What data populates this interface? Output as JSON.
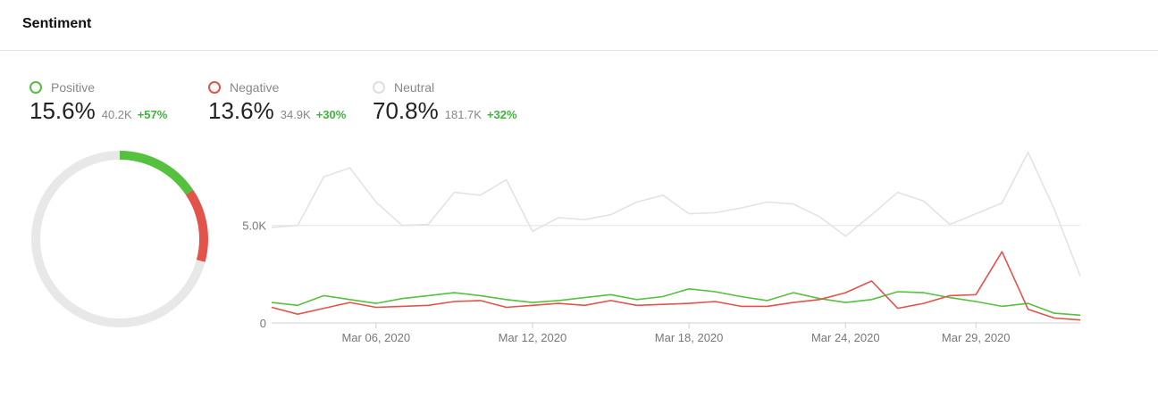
{
  "header": {
    "title": "Sentiment"
  },
  "colors": {
    "positive": "#55c13f",
    "negative": "#e2534b",
    "neutral": "#e3e3e3",
    "change": "#3db53d"
  },
  "legend": [
    {
      "key": "positive",
      "name": "Positive",
      "percent": "15.6%",
      "count": "40.2K",
      "change": "+57%"
    },
    {
      "key": "negative",
      "name": "Negative",
      "percent": "13.6%",
      "count": "34.9K",
      "change": "+30%"
    },
    {
      "key": "neutral",
      "name": "Neutral",
      "percent": "70.8%",
      "count": "181.7K",
      "change": "+32%"
    }
  ],
  "chart_data": [
    {
      "type": "pie",
      "variant": "donut",
      "categories": [
        "Positive",
        "Negative",
        "Neutral"
      ],
      "values": [
        15.6,
        13.6,
        70.8
      ]
    },
    {
      "type": "line",
      "x": [
        "2020-03-02",
        "2020-03-03",
        "2020-03-04",
        "2020-03-05",
        "2020-03-06",
        "2020-03-07",
        "2020-03-08",
        "2020-03-09",
        "2020-03-10",
        "2020-03-11",
        "2020-03-12",
        "2020-03-13",
        "2020-03-14",
        "2020-03-15",
        "2020-03-16",
        "2020-03-17",
        "2020-03-18",
        "2020-03-19",
        "2020-03-20",
        "2020-03-21",
        "2020-03-22",
        "2020-03-23",
        "2020-03-24",
        "2020-03-25",
        "2020-03-26",
        "2020-03-27",
        "2020-03-28",
        "2020-03-29",
        "2020-03-30",
        "2020-03-31",
        "2020-04-01",
        "2020-04-02"
      ],
      "xticks": [
        "Mar 06, 2020",
        "Mar 12, 2020",
        "Mar 18, 2020",
        "Mar 24, 2020",
        "Mar 29, 2020"
      ],
      "xtick_dates": [
        "2020-03-06",
        "2020-03-12",
        "2020-03-18",
        "2020-03-24",
        "2020-03-29"
      ],
      "yticks": [
        "0",
        "5.0K"
      ],
      "ytick_values": [
        0,
        5000
      ],
      "ylim": [
        0,
        9700
      ],
      "grid": "horizontal",
      "series": [
        {
          "key": "neutral",
          "values": [
            4900,
            5000,
            7500,
            7950,
            6200,
            5000,
            5050,
            6700,
            6550,
            7350,
            4700,
            5400,
            5300,
            5550,
            6200,
            6550,
            5600,
            5650,
            5900,
            6200,
            6100,
            5450,
            4450,
            5550,
            6700,
            6250,
            5050,
            5600,
            6150,
            8750,
            5850,
            2400
          ]
        },
        {
          "key": "positive",
          "values": [
            1050,
            900,
            1400,
            1200,
            1000,
            1250,
            1400,
            1550,
            1400,
            1200,
            1050,
            1150,
            1300,
            1450,
            1200,
            1350,
            1750,
            1600,
            1350,
            1150,
            1550,
            1250,
            1050,
            1200,
            1600,
            1550,
            1300,
            1100,
            850,
            1000,
            500,
            400
          ]
        },
        {
          "key": "negative",
          "values": [
            800,
            450,
            750,
            1050,
            800,
            850,
            900,
            1100,
            1150,
            800,
            900,
            1000,
            900,
            1150,
            900,
            950,
            1000,
            1100,
            850,
            850,
            1050,
            1200,
            1550,
            2150,
            750,
            1000,
            1400,
            1450,
            3650,
            700,
            250,
            150
          ]
        }
      ]
    }
  ]
}
